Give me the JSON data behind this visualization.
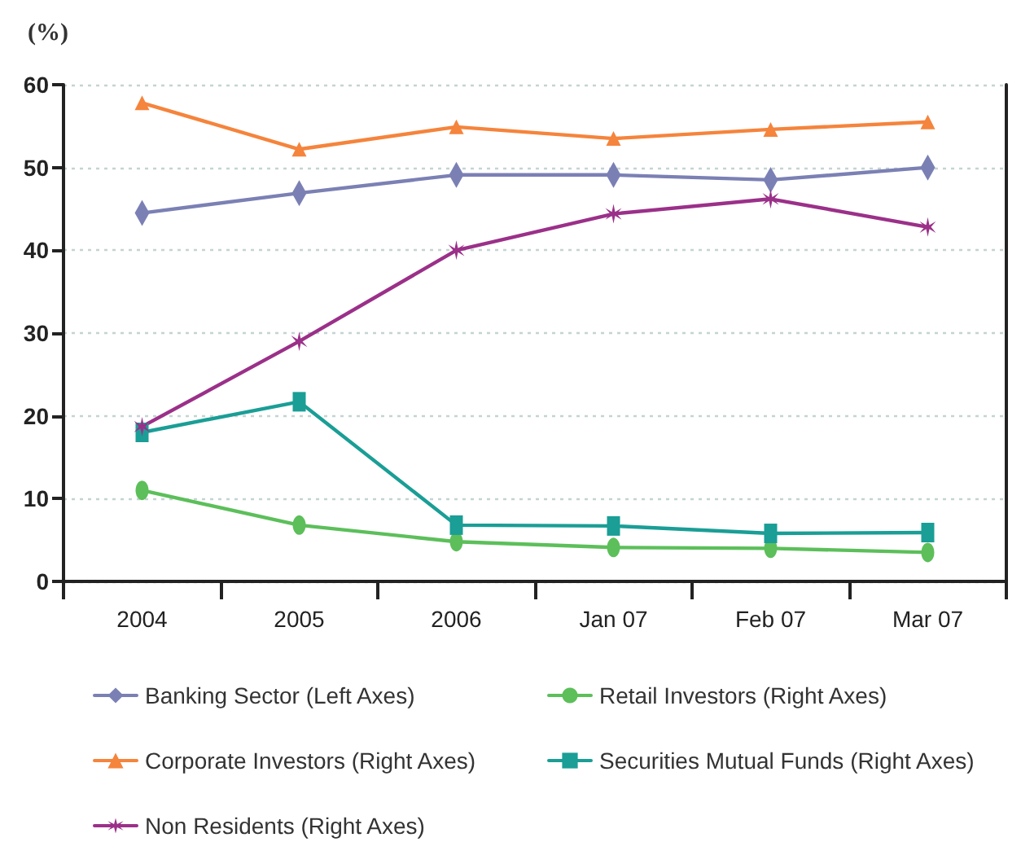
{
  "chart_data": {
    "type": "line",
    "ylabel": "(%)",
    "categories": [
      "2004",
      "2005",
      "2006",
      "Jan 07",
      "Feb 07",
      "Mar 07"
    ],
    "series": [
      {
        "name": "Banking Sector (Left Axes)",
        "color": "#7b80b4",
        "marker": "diamond",
        "values": [
          44.5,
          46.9,
          49.1,
          49.1,
          48.5,
          50.0
        ]
      },
      {
        "name": "Retail Investors (Right Axes)",
        "color": "#5cbf5a",
        "marker": "circle",
        "values": [
          11.0,
          6.8,
          4.8,
          4.1,
          4.0,
          3.5
        ]
      },
      {
        "name": "Corporate Investors (Right Axes)",
        "color": "#f5843c",
        "marker": "triangle",
        "values": [
          57.8,
          52.2,
          54.9,
          53.5,
          54.6,
          55.5
        ]
      },
      {
        "name": "Securities Mutual Funds (Right Axes)",
        "color": "#1a9e96",
        "marker": "square",
        "values": [
          18.0,
          21.7,
          6.8,
          6.7,
          5.8,
          5.9
        ]
      },
      {
        "name": "Non Residents (Right Axes)",
        "color": "#9b3089",
        "marker": "cross",
        "values": [
          18.7,
          29.0,
          40.0,
          44.4,
          46.2,
          42.8
        ]
      }
    ],
    "ylim": [
      0,
      60
    ],
    "yticks": [
      0,
      10,
      20,
      30,
      40,
      50,
      60
    ],
    "grid": "y",
    "legend": "bottom"
  }
}
